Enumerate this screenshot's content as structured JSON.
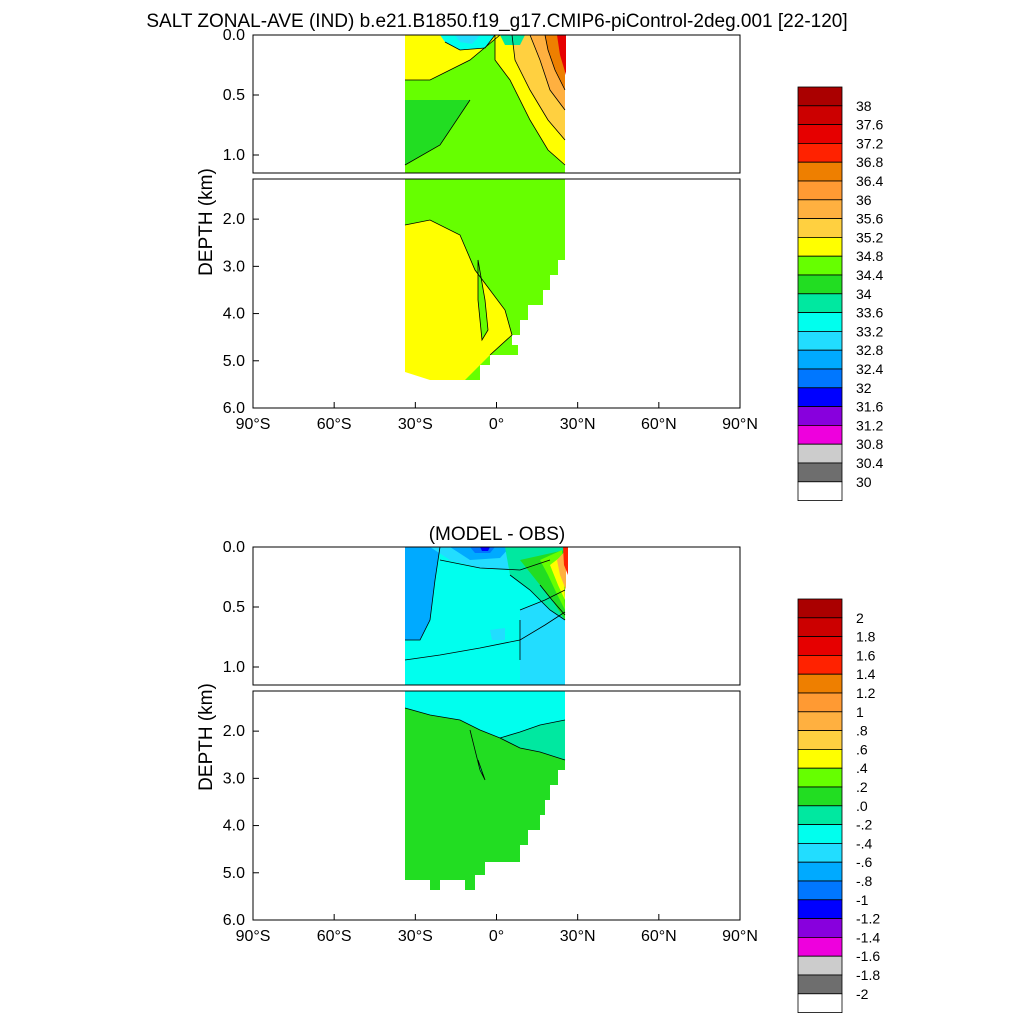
{
  "title": "SALT ZONAL-AVE (IND) b.e21.B1850.f19_g17.CMIP6-piControl-2deg.001 [22-120]",
  "chart_data": [
    {
      "type": "heatmap",
      "name": "salinity",
      "title": "",
      "ylabel": "DEPTH (km)",
      "xlim": [
        -90,
        90
      ],
      "ylim": [
        0,
        6
      ],
      "depth_break_km": 1.15,
      "xticks": [
        -90,
        -60,
        -30,
        0,
        30,
        60,
        90
      ],
      "xtick_labels": [
        "90°S",
        "60°S",
        "30°S",
        "0°",
        "30°N",
        "60°N",
        "90°N"
      ],
      "yticks_upper": [
        0.0,
        0.5,
        1.0
      ],
      "yticks_upper_labels": [
        "0.0",
        "0.5",
        "1.0"
      ],
      "yticks_lower": [
        2.0,
        3.0,
        4.0,
        5.0,
        6.0
      ],
      "yticks_lower_labels": [
        "2.0",
        "3.0",
        "4.0",
        "5.0",
        "6.0"
      ],
      "colorbar": {
        "labels": [
          "38",
          "37.6",
          "37.2",
          "36.8",
          "36.4",
          "36",
          "35.6",
          "35.2",
          "34.8",
          "34.4",
          "34",
          "33.6",
          "33.2",
          "32.8",
          "32.4",
          "32",
          "31.6",
          "31.2",
          "30.8",
          "30.4",
          "30"
        ],
        "colors": [
          "#aa0000",
          "#cc0000",
          "#e60000",
          "#ff2200",
          "#ee7f00",
          "#ff9a33",
          "#ffb040",
          "#ffd040",
          "#ffff00",
          "#66ff00",
          "#22dd22",
          "#00e8a0",
          "#00ffee",
          "#22ddff",
          "#00aaff",
          "#0077ff",
          "#0000ff",
          "#8800dd",
          "#ee00dd",
          "#cccccc",
          "#6e6e6e",
          "#ffffff"
        ]
      }
    },
    {
      "type": "heatmap",
      "name": "model-minus-obs",
      "title": "(MODEL - OBS)",
      "ylabel": "DEPTH (km)",
      "xlim": [
        -90,
        90
      ],
      "ylim": [
        0,
        6
      ],
      "depth_break_km": 1.15,
      "xticks": [
        -90,
        -60,
        -30,
        0,
        30,
        60,
        90
      ],
      "xtick_labels": [
        "90°S",
        "60°S",
        "30°S",
        "0°",
        "30°N",
        "60°N",
        "90°N"
      ],
      "yticks_upper": [
        0.0,
        0.5,
        1.0
      ],
      "yticks_upper_labels": [
        "0.0",
        "0.5",
        "1.0"
      ],
      "yticks_lower": [
        2.0,
        3.0,
        4.0,
        5.0,
        6.0
      ],
      "yticks_lower_labels": [
        "2.0",
        "3.0",
        "4.0",
        "5.0",
        "6.0"
      ],
      "colorbar": {
        "labels": [
          "2",
          "1.8",
          "1.6",
          "1.4",
          "1.2",
          "1",
          ".8",
          ".6",
          ".4",
          ".2",
          ".0",
          "-.2",
          "-.4",
          "-.6",
          "-.8",
          "-1",
          "-1.2",
          "-1.4",
          "-1.6",
          "-1.8",
          "-2"
        ],
        "colors": [
          "#aa0000",
          "#cc0000",
          "#e60000",
          "#ff2200",
          "#ee7f00",
          "#ff9a33",
          "#ffb040",
          "#ffd040",
          "#ffff00",
          "#66ff00",
          "#22dd22",
          "#00e8a0",
          "#00ffee",
          "#22ddff",
          "#00aaff",
          "#0077ff",
          "#0000ff",
          "#8800dd",
          "#ee00dd",
          "#cccccc",
          "#6e6e6e",
          "#ffffff"
        ]
      }
    }
  ]
}
